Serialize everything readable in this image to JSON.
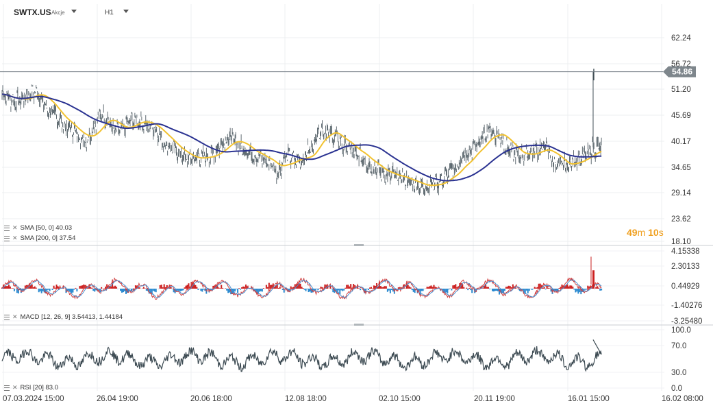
{
  "header": {
    "symbol": "SWTX.US",
    "symbol_type": "Akcje",
    "timeframe": "H1"
  },
  "price_axis": {
    "ticks": [
      "62.24",
      "56.72",
      "51.20",
      "45.69",
      "40.17",
      "34.65",
      "29.14",
      "23.62",
      "18.10"
    ],
    "current_price": "54.86"
  },
  "macd_axis": {
    "ticks": [
      "4.15338",
      "2.30133",
      "0.44929",
      "-1.40276",
      "-3.25480"
    ]
  },
  "rsi_axis": {
    "ticks": [
      "100.0",
      "70.0",
      "30.0",
      "0.0"
    ]
  },
  "time_axis": {
    "labels": [
      "07.03.2024  15:00",
      "26.04  19:00",
      "20.06  18:00",
      "12.08  18:00",
      "02.10  15:00",
      "20.11  19:00",
      "16.01  15:00",
      "16.02  08:00"
    ]
  },
  "indicators": {
    "sma50": "SMA  [50, 0]  40.03",
    "sma200": "SMA  [200, 0]  37.54",
    "macd": "MACD  [12, 26, 9]  3.54413,  1.44184",
    "rsi": "RSI  [20]  83.0"
  },
  "countdown": {
    "minutes": "49",
    "m_unit": "m",
    "seconds": "10",
    "s_unit": "s"
  },
  "colors": {
    "price": "#3c4a52",
    "sma50": "#f2c230",
    "sma200": "#2a3291",
    "macd_pos": "#cc1f1f",
    "macd_neg": "#2a8ad0",
    "macd_line": "#d04040",
    "signal_line": "#4a90d0",
    "rsi": "#3c4a52",
    "price_tag": "#7e868c"
  },
  "chart_data": [
    {
      "type": "line",
      "panel": "price",
      "ylim": [
        18.1,
        62.24
      ],
      "x_labels": [
        "07.03.2024 15:00",
        "26.04 19:00",
        "20.06 18:00",
        "12.08 18:00",
        "02.10 15:00",
        "20.11 19:00",
        "16.01 15:00",
        "16.02 08:00"
      ],
      "series": [
        {
          "name": "SWTX.US",
          "anchors": [
            [
              0,
              50.0
            ],
            [
              0.02,
              48.5
            ],
            [
              0.05,
              50.5
            ],
            [
              0.075,
              46.0
            ],
            [
              0.1,
              42.5
            ],
            [
              0.125,
              40.0
            ],
            [
              0.15,
              45.5
            ],
            [
              0.175,
              42.0
            ],
            [
              0.2,
              44.5
            ],
            [
              0.225,
              43.0
            ],
            [
              0.25,
              39.0
            ],
            [
              0.28,
              36.0
            ],
            [
              0.31,
              36.5
            ],
            [
              0.345,
              40.5
            ],
            [
              0.365,
              38.0
            ],
            [
              0.385,
              36.5
            ],
            [
              0.405,
              35.0
            ],
            [
              0.415,
              33.0
            ],
            [
              0.43,
              36.5
            ],
            [
              0.45,
              35.5
            ],
            [
              0.465,
              38.0
            ],
            [
              0.48,
              42.5
            ],
            [
              0.5,
              41.0
            ],
            [
              0.52,
              38.5
            ],
            [
              0.54,
              36.5
            ],
            [
              0.56,
              34.0
            ],
            [
              0.58,
              32.5
            ],
            [
              0.6,
              32.0
            ],
            [
              0.62,
              30.5
            ],
            [
              0.64,
              30.0
            ],
            [
              0.66,
              31.0
            ],
            [
              0.68,
              33.5
            ],
            [
              0.7,
              36.5
            ],
            [
              0.72,
              39.5
            ],
            [
              0.735,
              42.0
            ],
            [
              0.75,
              41.0
            ],
            [
              0.765,
              38.0
            ],
            [
              0.78,
              36.5
            ],
            [
              0.8,
              37.5
            ],
            [
              0.82,
              38.5
            ],
            [
              0.835,
              35.0
            ],
            [
              0.85,
              34.5
            ],
            [
              0.87,
              36.0
            ],
            [
              0.885,
              37.0
            ],
            [
              0.895,
              38.5
            ],
            [
              0.905,
              38.5
            ],
            [
              0.91,
              54.86
            ]
          ]
        },
        {
          "name": "SMA [50, 0]",
          "value": 40.03
        },
        {
          "name": "SMA [200, 0]",
          "value": 37.54
        }
      ]
    },
    {
      "type": "bar",
      "panel": "macd",
      "ylim": [
        -3.2548,
        4.15338
      ],
      "series": [
        {
          "name": "MACD [12, 26, 9]",
          "value": 3.54413
        },
        {
          "name": "signal",
          "value": 1.44184
        }
      ]
    },
    {
      "type": "line",
      "panel": "rsi",
      "ylim": [
        0,
        100
      ],
      "series": [
        {
          "name": "RSI [20]",
          "value": 83.0
        }
      ]
    }
  ]
}
